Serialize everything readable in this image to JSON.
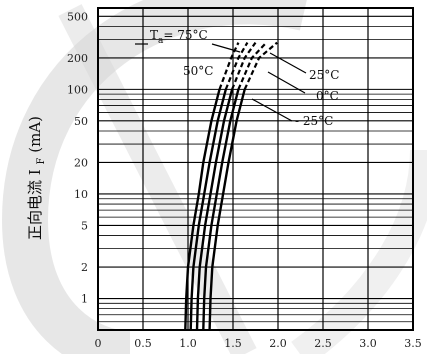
{
  "colors": {
    "background": "#ffffff",
    "watermark": "#d4d4d4",
    "plot_frame": "#000000",
    "grid": "#000000",
    "curve": "#000000",
    "text": "#111111"
  },
  "chart_data": {
    "type": "line",
    "title": "",
    "xlabel": "",
    "ylabel": "正向电流 I",
    "ylabel_subscript": "F",
    "ylabel_unit": "(mA)",
    "x_scale": "linear",
    "y_scale": "log",
    "xlim": [
      0,
      3.5
    ],
    "ylim": [
      0.5,
      600
    ],
    "x_ticks": [
      0,
      0.5,
      1.0,
      1.5,
      2.0,
      2.5,
      3.0,
      3.5
    ],
    "x_tick_labels": [
      "0",
      "0.5",
      "1.0",
      "1.5",
      "2.0",
      "2.5",
      "3.0",
      "3.5"
    ],
    "y_ticks": [
      1,
      2,
      5,
      10,
      20,
      50,
      100,
      200,
      500
    ],
    "y_tick_labels": [
      "1",
      "2",
      "5",
      "10",
      "20",
      "50",
      "100",
      "200",
      "500"
    ],
    "grid": true,
    "series": [
      {
        "name": "Ta = 75°C",
        "label_main": "T",
        "label_sub": "a",
        "label_rest": "= 75°C",
        "solid_points": [
          [
            0.97,
            0.5
          ],
          [
            0.98,
            1
          ],
          [
            1.0,
            2
          ],
          [
            1.06,
            5
          ],
          [
            1.12,
            10
          ],
          [
            1.17,
            20
          ],
          [
            1.26,
            50
          ],
          [
            1.35,
            100
          ]
        ],
        "dashed_points": [
          [
            1.35,
            100
          ],
          [
            1.48,
            200
          ],
          [
            1.56,
            280
          ]
        ]
      },
      {
        "name": "50°C",
        "label_main": "50°C",
        "label_sub": "",
        "label_rest": "",
        "solid_points": [
          [
            1.03,
            0.5
          ],
          [
            1.04,
            1
          ],
          [
            1.06,
            2
          ],
          [
            1.12,
            5
          ],
          [
            1.18,
            10
          ],
          [
            1.24,
            20
          ],
          [
            1.33,
            50
          ],
          [
            1.42,
            100
          ]
        ],
        "dashed_points": [
          [
            1.42,
            100
          ],
          [
            1.56,
            200
          ],
          [
            1.66,
            280
          ]
        ]
      },
      {
        "name": "25°C",
        "label_main": "25°C",
        "label_sub": "",
        "label_rest": "",
        "solid_points": [
          [
            1.1,
            0.5
          ],
          [
            1.11,
            1
          ],
          [
            1.13,
            2
          ],
          [
            1.19,
            5
          ],
          [
            1.25,
            10
          ],
          [
            1.31,
            20
          ],
          [
            1.4,
            50
          ],
          [
            1.49,
            100
          ]
        ],
        "dashed_points": [
          [
            1.49,
            100
          ],
          [
            1.63,
            200
          ],
          [
            1.75,
            280
          ]
        ]
      },
      {
        "name": "0°C",
        "label_main": "0°C",
        "label_sub": "",
        "label_rest": "",
        "solid_points": [
          [
            1.17,
            0.5
          ],
          [
            1.18,
            1
          ],
          [
            1.2,
            2
          ],
          [
            1.26,
            5
          ],
          [
            1.32,
            10
          ],
          [
            1.38,
            20
          ],
          [
            1.47,
            50
          ],
          [
            1.56,
            100
          ]
        ],
        "dashed_points": [
          [
            1.56,
            100
          ],
          [
            1.71,
            200
          ],
          [
            1.87,
            280
          ]
        ]
      },
      {
        "name": "- 25°C",
        "label_main": "- 25°C",
        "label_sub": "",
        "label_rest": "",
        "solid_points": [
          [
            1.24,
            0.5
          ],
          [
            1.25,
            1
          ],
          [
            1.27,
            2
          ],
          [
            1.33,
            5
          ],
          [
            1.39,
            10
          ],
          [
            1.45,
            20
          ],
          [
            1.54,
            50
          ],
          [
            1.63,
            100
          ]
        ],
        "dashed_points": [
          [
            1.63,
            100
          ],
          [
            1.79,
            200
          ],
          [
            1.99,
            280
          ]
        ]
      }
    ]
  }
}
